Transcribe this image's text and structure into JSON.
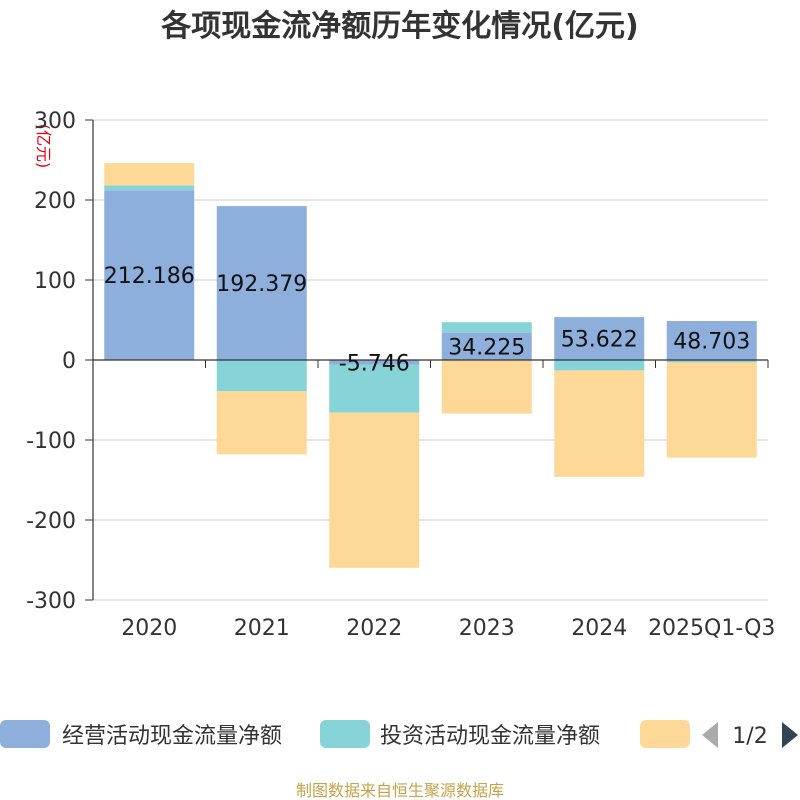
{
  "title": "各项现金流净额历年变化情况(亿元)",
  "unit_label": "(亿元)",
  "source": "制图数据来自恒生聚源数据库",
  "legend": {
    "page": "1/2"
  },
  "colors": {
    "operating": "#8eaedb",
    "investing": "#86d4d8",
    "financing": "#fed897",
    "axis": "#333333",
    "grid": "#cccccc",
    "pager_prev": "#aaaaaa",
    "pager_next": "#2f4554"
  },
  "chart_data": {
    "type": "bar",
    "stacked": true,
    "categories": [
      "2020",
      "2021",
      "2022",
      "2023",
      "2024",
      "2025Q1-Q3"
    ],
    "ylim": [
      -300,
      300
    ],
    "yticks": [
      300,
      200,
      100,
      0,
      -100,
      -200,
      -300
    ],
    "grid": true,
    "legend_position": "bottom",
    "series": [
      {
        "name": "经营活动现金流量净额",
        "values": [
          212.186,
          192.379,
          -5.746,
          34.225,
          53.622,
          48.703
        ],
        "labels": [
          "212.186",
          "192.379",
          "-5.746",
          "34.225",
          "53.622",
          "48.703"
        ]
      },
      {
        "name": "投资活动现金流量净额",
        "values": [
          6,
          -39,
          -60,
          13,
          -13,
          -3
        ]
      },
      {
        "values": [
          28,
          -79,
          -194,
          -67,
          -133,
          -119
        ]
      }
    ]
  }
}
